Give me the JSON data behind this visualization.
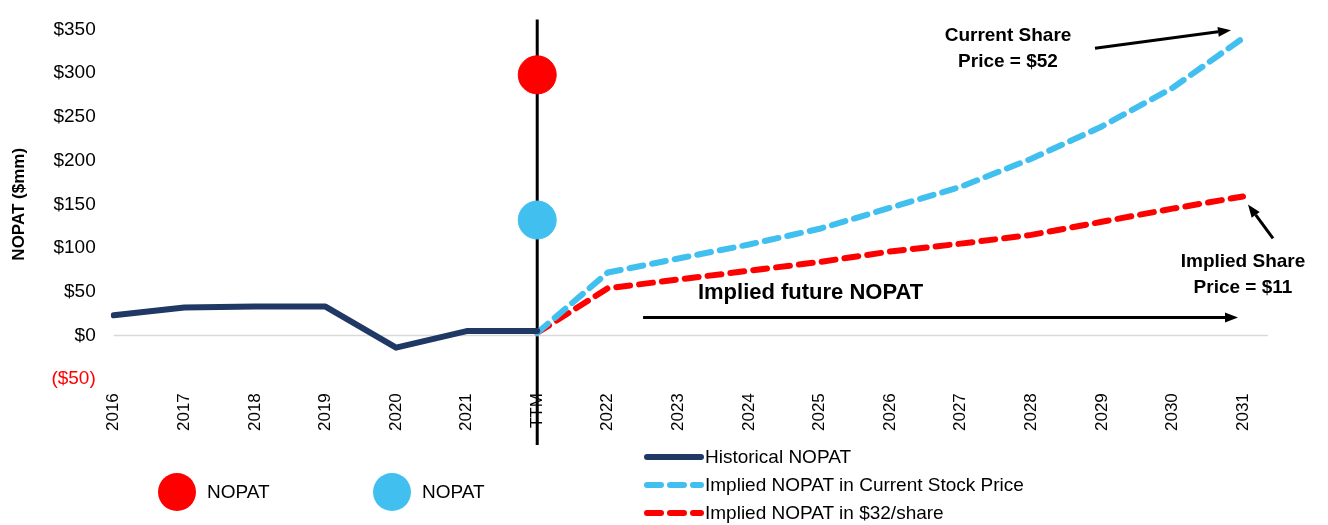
{
  "chart_data": {
    "type": "line",
    "ylabel": "NOPAT ($mm)",
    "categories": [
      "2016",
      "2017",
      "2018",
      "2019",
      "2020",
      "2021",
      "TTM",
      "2022",
      "2023",
      "2024",
      "2025",
      "2026",
      "2027",
      "2028",
      "2029",
      "2030",
      "2031"
    ],
    "series": [
      {
        "name": "NOPAT",
        "type": "scatter",
        "color": "#ff0000",
        "marker": "circle",
        "x": [
          "TTM"
        ],
        "values": [
          298
        ]
      },
      {
        "name": "NOPAT",
        "type": "scatter",
        "color": "#41c0f0",
        "marker": "circle",
        "x": [
          "TTM"
        ],
        "values": [
          132
        ]
      },
      {
        "name": "Historical NOPAT",
        "color": "#1f3864",
        "line_style": "solid",
        "values": [
          23,
          32,
          33,
          33,
          -14,
          5,
          5,
          null,
          null,
          null,
          null,
          null,
          null,
          null,
          null,
          null,
          null
        ]
      },
      {
        "name": "Implied NOPAT in Current Stock Price",
        "color": "#41c0f0",
        "line_style": "dashed",
        "values": [
          null,
          null,
          null,
          null,
          null,
          null,
          3,
          72,
          88,
          104,
          122,
          146,
          170,
          202,
          239,
          283,
          340
        ]
      },
      {
        "name": "Implied NOPAT in $32/share",
        "color": "#ff0000",
        "line_style": "dashed",
        "values": [
          null,
          null,
          null,
          null,
          null,
          null,
          3,
          54,
          64,
          74,
          84,
          96,
          105,
          115,
          130,
          145,
          159
        ]
      }
    ],
    "ylim": [
      -50,
      350
    ],
    "yticks": [
      {
        "value": -50,
        "label": "($50)"
      },
      {
        "value": 0,
        "label": "$0"
      },
      {
        "value": 50,
        "label": "$50"
      },
      {
        "value": 100,
        "label": "$100"
      },
      {
        "value": 150,
        "label": "$150"
      },
      {
        "value": 200,
        "label": "$200"
      },
      {
        "value": 250,
        "label": "$250"
      },
      {
        "value": 300,
        "label": "$300"
      },
      {
        "value": 350,
        "label": "$350"
      }
    ],
    "ref_lines": [
      {
        "axis": "x",
        "value": "TTM",
        "color": "#000000"
      },
      {
        "axis": "y",
        "value": 0,
        "color": "#d9d9d9"
      }
    ],
    "annotations": [
      "Current Share Price = $52",
      "Implied Share Price = $11",
      "Implied future NOPAT"
    ],
    "grid": false,
    "legend": "bottom"
  }
}
